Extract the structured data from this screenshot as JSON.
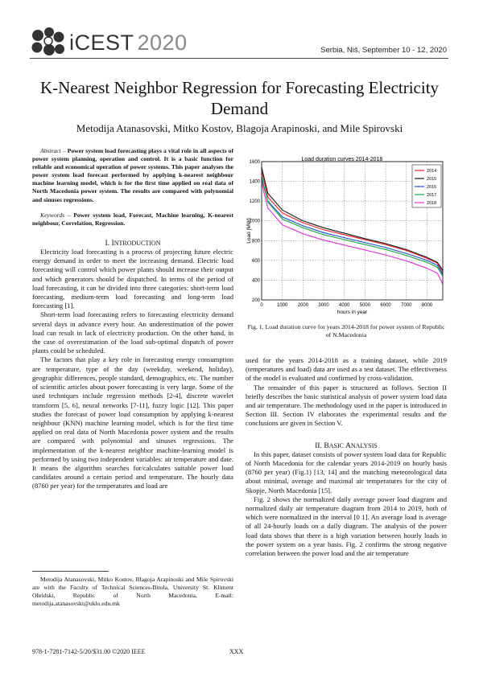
{
  "header": {
    "logo_text": "iCEST",
    "logo_year": "2020",
    "conference_line": "Serbia, Niš, September 10 - 12, 2020"
  },
  "title": "K-Nearest Neighbor Regression for Forecasting Electricity Demand",
  "authors": "Metodija Atanasovski, Mitko Kostov, Blagoja Arapinoski, and Mile Spirovski",
  "abstract": {
    "label": "Abstract –",
    "text": "Power system load forecasting plays a vital role in all aspects of power system planning, operation and control. It is a basic function for reliable and economical operation of power systems. This paper analyses the power system load forecast performed by applying k-nearest neighbour machine learning model, which is for the first time applied on real data of North Macedonia power system. The results are compared with polynomial and sinuses regressions."
  },
  "keywords": {
    "label": "Keywords –",
    "text": "Power system load, Forecast, Machine learning, K-nearest neighbour, Correlation, Regression."
  },
  "section1": {
    "heading_num": "I.",
    "heading_first": "I",
    "heading_rest": "NTRODUCTION",
    "p1": "Electricity load forecasting is a process of projecting future electric energy demand in order to meet the increasing demand. Electric load forecasting will control which power plants should increase their output and which generators should be dispatched. In terms of the period of load forecasting, it can be divided into three categories: short-term load forecasting, medium-term load forecasting and long-term load forecasting [1].",
    "p2": "Short-term load forecasting refers to forecasting electricity demand several days in advance every hour. An underestimation of the power load can result in lack of electricity production. On the other hand, in the case of overestimation of the load sub-optimal dispatch of power plants could be scheduled.",
    "p3": "The factors that play a key role in forecasting energy consumption are temperature, type of the day (weekday, weekend, holiday), geographic differences, people standard, demographics, etc. The number of scientific articles about power forecasting is very large. Some of the used techniques include regression methods [2-4], discrete wavelet transform [5, 6], neural networks [7-11], fuzzy logic [12]. This paper studies the forecast of power load consumption by applying k-nearest neighbour (KNN) machine learning model, which is for the first time applied on real data of North Macedonia power system and the results are compared with polynomial and sinuses regressions. The implementation of the k-nearest neighbor machine-learning model is performed by using two independent variables: air temperature and date. It means the algorithm searches for/calculates suitable power load candidates around a certain period and temperature. The hourly data (8760 per year) for the temperatures and load are"
  },
  "footnote": "Metodija Atanasovski, Mitko Kostov, Blagoja Arapinoski and Mile Spirovski are with the Faculty of Technical Sciences-Bitola, University St. Kliment Ohridski, Republic of North Macedonia, E-mail: metodija.atanasovski@uklo.edu.mk",
  "footer": {
    "isbn": "978-1-7281-7142-5/20/$31.00 ©2020 IEEE",
    "page": "XXX"
  },
  "figure1": {
    "caption": "Fig. 1. Load duration curve for years 2014-2018 for power system of Republic of N.Macedonia"
  },
  "right_column": {
    "p1": "used for the years 2014-2018 as a training dataset, while 2019 (temperatures and load) data are used as a test dataset. The effectiveness of the model is evaluated and confirmed by cross-validation.",
    "p2": "The remainder of this paper is structured as follows. Section II briefly describes the basic statistical analysis of power system load data and air temperature. The methodology used in the paper is introduced in Section III. Section IV elaborates the experimental results and the conclusions are given in Section V.",
    "section2_num": "II.",
    "section2_first": "B",
    "section2_rest": "ASIC ",
    "section2_first2": "A",
    "section2_rest2": "NALYSIS",
    "p3": "In this paper, dataset consists of power system load data for Republic of North Macedonia for the calendar years 2014-2019 on hourly basis (8760 per year) (Fig.1) [13, 14] and the matching meteorological data about minimal, average and maximal air temperatures for the city of Skopje, North Macedonia [15].",
    "p4": "Fig. 2 shows the normalized daily average power load diagram and normalized daily air temperature diagram from 2014 to 2019, both of which were normalized in the interval [0 1]. An average load is average of all 24-hourly loads on a daily diagram. The analysis of the power load data shows that there is a high variation between hourly loads in the power system on a year basis. Fig. 2 confirms the strong negative correlation between the power load and the air temperature"
  },
  "chart_data": {
    "type": "line",
    "title": "Load duration curves 2014-2018",
    "xlabel": "hours in year",
    "ylabel": "Load [MW]",
    "xlim": [
      0,
      8760
    ],
    "ylim": [
      200,
      1600
    ],
    "x_ticks": [
      "0",
      "1000",
      "2000",
      "3000",
      "4000",
      "5000",
      "6000",
      "7000",
      "8000"
    ],
    "y_ticks": [
      "200",
      "400",
      "600",
      "800",
      "1000",
      "1200",
      "1400",
      "1600"
    ],
    "grid": true,
    "legend_position": "top-right",
    "series": [
      {
        "name": "2014",
        "color": "#e8222a",
        "x": [
          0,
          300,
          1000,
          2000,
          3000,
          4000,
          5000,
          6000,
          7000,
          8000,
          8500,
          8760
        ],
        "values": [
          1500,
          1240,
          1080,
          980,
          910,
          860,
          810,
          760,
          700,
          620,
          570,
          480
        ]
      },
      {
        "name": "2015",
        "color": "#1a1a1a",
        "x": [
          0,
          300,
          1000,
          2000,
          3000,
          4000,
          5000,
          6000,
          7000,
          8000,
          8500,
          8760
        ],
        "values": [
          1540,
          1280,
          1110,
          1000,
          930,
          875,
          820,
          770,
          710,
          630,
          580,
          500
        ]
      },
      {
        "name": "2016",
        "color": "#1f4bd8",
        "x": [
          0,
          300,
          1000,
          2000,
          3000,
          4000,
          5000,
          6000,
          7000,
          8000,
          8500,
          8760
        ],
        "values": [
          1420,
          1200,
          1040,
          950,
          880,
          830,
          780,
          730,
          670,
          600,
          550,
          460
        ]
      },
      {
        "name": "2017",
        "color": "#1aa84a",
        "x": [
          0,
          300,
          1000,
          2000,
          3000,
          4000,
          5000,
          6000,
          7000,
          8000,
          8500,
          8760
        ],
        "values": [
          1450,
          1190,
          1020,
          930,
          860,
          810,
          760,
          710,
          650,
          580,
          530,
          440
        ]
      },
      {
        "name": "2018",
        "color": "#e033d0",
        "x": [
          0,
          300,
          1000,
          2000,
          3000,
          4000,
          5000,
          6000,
          7000,
          8000,
          8500,
          8760
        ],
        "values": [
          1380,
          1130,
          960,
          870,
          805,
          755,
          705,
          655,
          595,
          520,
          470,
          360
        ]
      }
    ]
  }
}
